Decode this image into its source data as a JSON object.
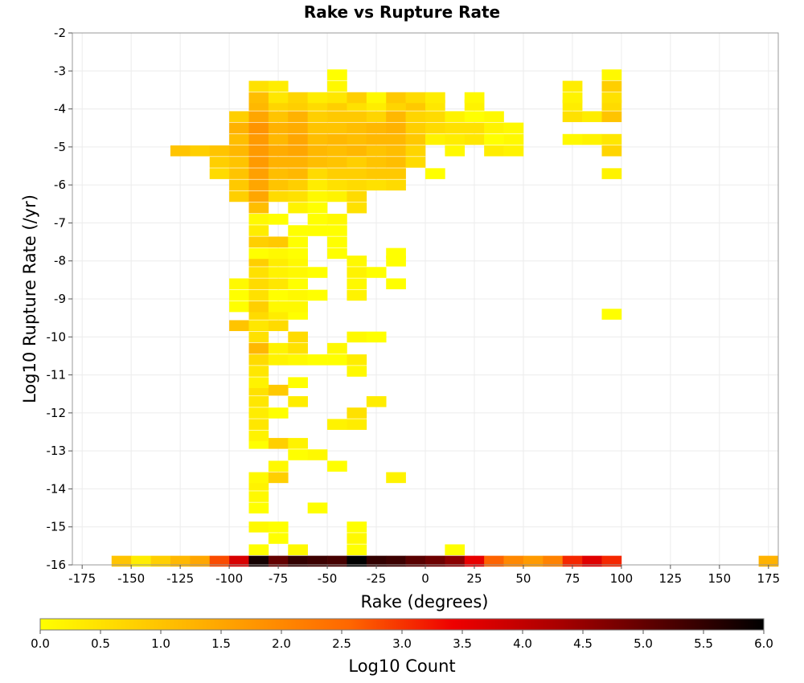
{
  "chart_data": {
    "type": "heatmap",
    "title": "Rake vs Rupture Rate",
    "xlabel": "Rake (degrees)",
    "ylabel": "Log10 Rupture Rate (/yr)",
    "xlim": [
      -180,
      180
    ],
    "ylim": [
      -16,
      -2
    ],
    "xticks": [
      -175,
      -150,
      -125,
      -100,
      -75,
      -50,
      -25,
      0,
      25,
      50,
      75,
      100,
      125,
      150,
      175
    ],
    "yticks": [
      -2,
      -3,
      -4,
      -5,
      -6,
      -7,
      -8,
      -9,
      -10,
      -11,
      -12,
      -13,
      -14,
      -15,
      -16
    ],
    "bin_width": 10,
    "bin_height": 0.28,
    "colorbar": {
      "label": "Log10 Count",
      "range": [
        0,
        6
      ],
      "ticks": [
        "0.0",
        "0.5",
        "1.0",
        "1.5",
        "2.0",
        "2.5",
        "3.0",
        "3.5",
        "4.0",
        "4.5",
        "5.0",
        "5.5",
        "6.0"
      ],
      "colors": [
        "#ffff00",
        "#ffcc00",
        "#ff9900",
        "#ff6600",
        "#ee0000",
        "#aa0000",
        "#550000",
        "#000000"
      ]
    },
    "cells": [
      [
        -155,
        -15.9,
        1.0
      ],
      [
        -145,
        -15.9,
        0.3
      ],
      [
        -135,
        -15.9,
        0.8
      ],
      [
        -125,
        -15.9,
        1.2
      ],
      [
        -115,
        -15.9,
        1.5
      ],
      [
        -105,
        -15.9,
        2.8
      ],
      [
        -95,
        -15.9,
        3.7
      ],
      [
        -85,
        -15.9,
        5.8
      ],
      [
        -75,
        -15.9,
        5.0
      ],
      [
        -65,
        -15.9,
        5.5
      ],
      [
        -55,
        -15.9,
        5.4
      ],
      [
        -45,
        -15.9,
        5.3
      ],
      [
        -35,
        -15.9,
        6.0
      ],
      [
        -25,
        -15.9,
        5.5
      ],
      [
        -15,
        -15.9,
        5.4
      ],
      [
        -5,
        -15.9,
        5.1
      ],
      [
        5,
        -15.9,
        4.9
      ],
      [
        15,
        -15.9,
        4.6
      ],
      [
        25,
        -15.9,
        3.5
      ],
      [
        35,
        -15.9,
        2.6
      ],
      [
        45,
        -15.9,
        2.0
      ],
      [
        55,
        -15.9,
        1.7
      ],
      [
        65,
        -15.9,
        2.1
      ],
      [
        75,
        -15.9,
        3.1
      ],
      [
        85,
        -15.9,
        3.6
      ],
      [
        95,
        -15.9,
        3.1
      ],
      [
        175,
        -15.9,
        1.3
      ],
      [
        -85,
        -15.6,
        0.0
      ],
      [
        -65,
        -15.6,
        0.1
      ],
      [
        -35,
        -15.6,
        0.0
      ],
      [
        15,
        -15.6,
        0.0
      ],
      [
        -75,
        -15.3,
        0.0
      ],
      [
        -35,
        -15.3,
        0.1
      ],
      [
        -85,
        -15.0,
        0.1
      ],
      [
        -75,
        -15.0,
        0.0
      ],
      [
        -35,
        -15.0,
        0.0
      ],
      [
        -85,
        -14.5,
        0.0
      ],
      [
        -55,
        -14.5,
        0.0
      ],
      [
        -85,
        -14.2,
        0.1
      ],
      [
        -85,
        -13.9,
        0.2
      ],
      [
        -85,
        -13.7,
        0.1
      ],
      [
        -75,
        -13.7,
        0.8
      ],
      [
        -15,
        -13.7,
        0.2
      ],
      [
        -75,
        -13.4,
        0.1
      ],
      [
        -45,
        -13.4,
        0.0
      ],
      [
        -85,
        -12.8,
        0.0
      ],
      [
        -75,
        -12.8,
        0.8
      ],
      [
        -65,
        -12.8,
        0.2
      ],
      [
        -65,
        -13.1,
        0.0
      ],
      [
        -55,
        -13.1,
        0.1
      ],
      [
        -85,
        -12.6,
        0.2
      ],
      [
        -85,
        -12.3,
        0.4
      ],
      [
        -45,
        -12.3,
        0.2
      ],
      [
        -35,
        -12.3,
        0.3
      ],
      [
        -85,
        -12.0,
        0.3
      ],
      [
        -75,
        -12.0,
        0.0
      ],
      [
        -35,
        -12.0,
        0.5
      ],
      [
        -85,
        -11.7,
        0.4
      ],
      [
        -65,
        -11.7,
        0.3
      ],
      [
        -25,
        -11.7,
        0.3
      ],
      [
        -85,
        -11.4,
        0.5
      ],
      [
        -75,
        -11.4,
        0.9
      ],
      [
        -85,
        -11.2,
        0.2
      ],
      [
        -65,
        -11.2,
        0.0
      ],
      [
        -85,
        -10.9,
        0.4
      ],
      [
        -35,
        -10.9,
        0.1
      ],
      [
        -85,
        -10.6,
        0.6
      ],
      [
        -75,
        -10.6,
        0.2
      ],
      [
        -65,
        -10.6,
        0.1
      ],
      [
        -55,
        -10.6,
        0.0
      ],
      [
        -45,
        -10.6,
        0.0
      ],
      [
        -35,
        -10.6,
        0.3
      ],
      [
        -85,
        -10.3,
        1.2
      ],
      [
        -75,
        -10.3,
        0.2
      ],
      [
        -65,
        -10.3,
        0.5
      ],
      [
        -45,
        -10.3,
        0.1
      ],
      [
        -85,
        -10.0,
        0.5
      ],
      [
        -65,
        -10.0,
        0.6
      ],
      [
        -35,
        -10.0,
        0.1
      ],
      [
        -25,
        -10.0,
        0.0
      ],
      [
        -95,
        -9.7,
        1.0
      ],
      [
        -85,
        -9.7,
        0.4
      ],
      [
        -75,
        -9.7,
        0.6
      ],
      [
        95,
        -9.4,
        0.0
      ],
      [
        -85,
        -9.4,
        0.6
      ],
      [
        -75,
        -9.4,
        0.3
      ],
      [
        -65,
        -9.4,
        0.0
      ],
      [
        -95,
        -9.2,
        0.0
      ],
      [
        -85,
        -9.2,
        0.8
      ],
      [
        -75,
        -9.2,
        0.1
      ],
      [
        -65,
        -9.2,
        0.1
      ],
      [
        -95,
        -8.9,
        0.0
      ],
      [
        -85,
        -8.9,
        0.5
      ],
      [
        -75,
        -8.9,
        0.0
      ],
      [
        -65,
        -8.9,
        0.1
      ],
      [
        -55,
        -8.9,
        0.0
      ],
      [
        -35,
        -8.9,
        0.2
      ],
      [
        -95,
        -8.6,
        0.1
      ],
      [
        -85,
        -8.6,
        0.6
      ],
      [
        -75,
        -8.6,
        0.4
      ],
      [
        -65,
        -8.6,
        0.0
      ],
      [
        -35,
        -8.6,
        0.1
      ],
      [
        -15,
        -8.6,
        0.0
      ],
      [
        -85,
        -8.3,
        0.5
      ],
      [
        -75,
        -8.3,
        0.2
      ],
      [
        -65,
        -8.3,
        0.1
      ],
      [
        -55,
        -8.3,
        0.0
      ],
      [
        -35,
        -8.3,
        0.2
      ],
      [
        -25,
        -8.3,
        0.0
      ],
      [
        -85,
        -8.0,
        0.8
      ],
      [
        -75,
        -8.0,
        0.3
      ],
      [
        -65,
        -8.0,
        0.1
      ],
      [
        -35,
        -8.0,
        0.1
      ],
      [
        -15,
        -8.0,
        0.0
      ],
      [
        -85,
        -7.8,
        0.0
      ],
      [
        -75,
        -7.8,
        0.1
      ],
      [
        -65,
        -7.8,
        0.0
      ],
      [
        -45,
        -7.8,
        0.0
      ],
      [
        -15,
        -7.8,
        0.0
      ],
      [
        -85,
        -7.5,
        0.8
      ],
      [
        -75,
        -7.5,
        0.9
      ],
      [
        -65,
        -7.5,
        0.0
      ],
      [
        -45,
        -7.5,
        0.0
      ],
      [
        -85,
        -7.2,
        0.3
      ],
      [
        -65,
        -7.2,
        0.0
      ],
      [
        -55,
        -7.2,
        0.0
      ],
      [
        -45,
        -7.2,
        0.0
      ],
      [
        -85,
        -6.9,
        0.1
      ],
      [
        -75,
        -6.9,
        0.0
      ],
      [
        -55,
        -6.9,
        0.0
      ],
      [
        -45,
        -6.9,
        0.1
      ],
      [
        -85,
        -6.6,
        1.1
      ],
      [
        -65,
        -6.6,
        0.2
      ],
      [
        -55,
        -6.6,
        0.0
      ],
      [
        -35,
        -6.6,
        0.5
      ],
      [
        -95,
        -6.3,
        0.8
      ],
      [
        -85,
        -6.3,
        1.5
      ],
      [
        -75,
        -6.3,
        0.6
      ],
      [
        -65,
        -6.3,
        0.5
      ],
      [
        -55,
        -6.3,
        0.1
      ],
      [
        -45,
        -6.3,
        0.2
      ],
      [
        -35,
        -6.3,
        0.6
      ],
      [
        -95,
        -6.0,
        0.9
      ],
      [
        -85,
        -6.0,
        1.5
      ],
      [
        -75,
        -6.0,
        1.0
      ],
      [
        -65,
        -6.0,
        0.8
      ],
      [
        -55,
        -6.0,
        0.3
      ],
      [
        -45,
        -6.0,
        0.5
      ],
      [
        -35,
        -6.0,
        0.6
      ],
      [
        -25,
        -6.0,
        0.5
      ],
      [
        -15,
        -6.0,
        0.6
      ],
      [
        -105,
        -5.7,
        0.6
      ],
      [
        -95,
        -5.7,
        1.0
      ],
      [
        -85,
        -5.7,
        1.6
      ],
      [
        -75,
        -5.7,
        1.1
      ],
      [
        -65,
        -5.7,
        1.2
      ],
      [
        -55,
        -5.7,
        0.6
      ],
      [
        -45,
        -5.7,
        0.8
      ],
      [
        -35,
        -5.7,
        0.8
      ],
      [
        -25,
        -5.7,
        0.9
      ],
      [
        -15,
        -5.7,
        0.9
      ],
      [
        5,
        -5.7,
        0.0
      ],
      [
        95,
        -5.7,
        0.2
      ],
      [
        -105,
        -5.4,
        0.8
      ],
      [
        -95,
        -5.4,
        1.0
      ],
      [
        -85,
        -5.4,
        1.7
      ],
      [
        -75,
        -5.4,
        1.3
      ],
      [
        -65,
        -5.4,
        1.3
      ],
      [
        -55,
        -5.4,
        1.1
      ],
      [
        -45,
        -5.4,
        1.0
      ],
      [
        -35,
        -5.4,
        0.8
      ],
      [
        -25,
        -5.4,
        1.0
      ],
      [
        -15,
        -5.4,
        1.1
      ],
      [
        -5,
        -5.4,
        0.6
      ],
      [
        -125,
        -5.1,
        1.0
      ],
      [
        -115,
        -5.1,
        0.8
      ],
      [
        -105,
        -5.1,
        1.0
      ],
      [
        -95,
        -5.1,
        1.2
      ],
      [
        -85,
        -5.1,
        1.7
      ],
      [
        -75,
        -5.1,
        1.4
      ],
      [
        -65,
        -5.1,
        1.5
      ],
      [
        -55,
        -5.1,
        1.2
      ],
      [
        -45,
        -5.1,
        1.1
      ],
      [
        -35,
        -5.1,
        1.2
      ],
      [
        -25,
        -5.1,
        1.0
      ],
      [
        -15,
        -5.1,
        1.1
      ],
      [
        -5,
        -5.1,
        0.7
      ],
      [
        15,
        -5.1,
        0.1
      ],
      [
        35,
        -5.1,
        0.3
      ],
      [
        45,
        -5.1,
        0.2
      ],
      [
        95,
        -5.1,
        0.7
      ],
      [
        -95,
        -4.8,
        1.1
      ],
      [
        -85,
        -4.8,
        1.7
      ],
      [
        -75,
        -4.8,
        1.2
      ],
      [
        -65,
        -4.8,
        1.5
      ],
      [
        -55,
        -4.8,
        1.1
      ],
      [
        -45,
        -4.8,
        1.2
      ],
      [
        -35,
        -4.8,
        1.1
      ],
      [
        -25,
        -4.8,
        1.2
      ],
      [
        -15,
        -4.8,
        1.2
      ],
      [
        -5,
        -4.8,
        0.9
      ],
      [
        5,
        -4.8,
        0.2
      ],
      [
        15,
        -4.8,
        0.3
      ],
      [
        25,
        -4.8,
        0.4
      ],
      [
        35,
        -4.8,
        0.0
      ],
      [
        45,
        -4.8,
        0.1
      ],
      [
        75,
        -4.8,
        0.1
      ],
      [
        85,
        -4.8,
        0.2
      ],
      [
        95,
        -4.8,
        0.4
      ],
      [
        -95,
        -4.5,
        1.3
      ],
      [
        -85,
        -4.5,
        1.8
      ],
      [
        -75,
        -4.5,
        1.3
      ],
      [
        -65,
        -4.5,
        1.4
      ],
      [
        -55,
        -4.5,
        1.0
      ],
      [
        -45,
        -4.5,
        1.0
      ],
      [
        -35,
        -4.5,
        1.1
      ],
      [
        -25,
        -4.5,
        1.2
      ],
      [
        -15,
        -4.5,
        1.3
      ],
      [
        -5,
        -4.5,
        0.8
      ],
      [
        5,
        -4.5,
        0.6
      ],
      [
        15,
        -4.5,
        0.5
      ],
      [
        25,
        -4.5,
        0.5
      ],
      [
        35,
        -4.5,
        0.2
      ],
      [
        45,
        -4.5,
        0.1
      ],
      [
        -95,
        -4.2,
        0.8
      ],
      [
        -85,
        -4.2,
        1.5
      ],
      [
        -75,
        -4.2,
        1.0
      ],
      [
        -65,
        -4.2,
        1.3
      ],
      [
        -55,
        -4.2,
        0.8
      ],
      [
        -45,
        -4.2,
        0.9
      ],
      [
        -35,
        -4.2,
        0.9
      ],
      [
        -25,
        -4.2,
        0.7
      ],
      [
        -15,
        -4.2,
        1.2
      ],
      [
        -5,
        -4.2,
        0.7
      ],
      [
        5,
        -4.2,
        0.6
      ],
      [
        15,
        -4.2,
        0.2
      ],
      [
        25,
        -4.2,
        0.0
      ],
      [
        35,
        -4.2,
        0.1
      ],
      [
        75,
        -4.2,
        0.5
      ],
      [
        85,
        -4.2,
        0.3
      ],
      [
        95,
        -4.2,
        1.0
      ],
      [
        -85,
        -3.9,
        1.2
      ],
      [
        -75,
        -3.9,
        0.7
      ],
      [
        -65,
        -3.9,
        0.8
      ],
      [
        -55,
        -3.9,
        0.6
      ],
      [
        -45,
        -3.9,
        0.8
      ],
      [
        -35,
        -3.9,
        0.5
      ],
      [
        -25,
        -3.9,
        0.3
      ],
      [
        -15,
        -3.9,
        0.7
      ],
      [
        -5,
        -3.9,
        0.9
      ],
      [
        5,
        -3.9,
        0.4
      ],
      [
        25,
        -3.9,
        0.2
      ],
      [
        75,
        -3.9,
        0.3
      ],
      [
        95,
        -3.9,
        0.6
      ],
      [
        -85,
        -3.7,
        1.1
      ],
      [
        -75,
        -3.7,
        0.4
      ],
      [
        -65,
        -3.7,
        0.7
      ],
      [
        -55,
        -3.7,
        0.3
      ],
      [
        -45,
        -3.7,
        0.4
      ],
      [
        -35,
        -3.7,
        0.8
      ],
      [
        -25,
        -3.7,
        0.1
      ],
      [
        -15,
        -3.7,
        0.9
      ],
      [
        -5,
        -3.7,
        0.6
      ],
      [
        5,
        -3.7,
        0.3
      ],
      [
        25,
        -3.7,
        0.1
      ],
      [
        75,
        -3.7,
        0.2
      ],
      [
        95,
        -3.7,
        0.5
      ],
      [
        -85,
        -3.4,
        0.5
      ],
      [
        -75,
        -3.4,
        0.3
      ],
      [
        -45,
        -3.4,
        0.1
      ],
      [
        75,
        -3.4,
        0.3
      ],
      [
        95,
        -3.4,
        0.8
      ],
      [
        -45,
        -3.1,
        0.0
      ],
      [
        95,
        -3.1,
        0.1
      ]
    ]
  }
}
